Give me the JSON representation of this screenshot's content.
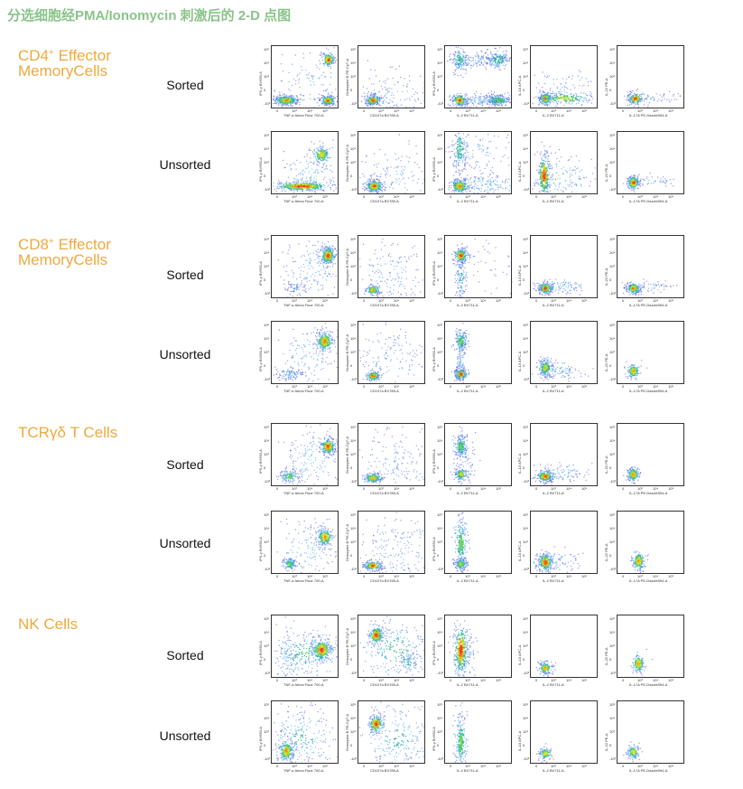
{
  "title": "分选细胞经PMA/Ionomycin 刺激后的 2-D 点图",
  "colors": {
    "title": "#8ac48a",
    "group_label": "#f0a93c",
    "density_low": "#3b44d6",
    "density_high": "#ff2a00"
  },
  "groups": [
    {
      "name_main": "CD4",
      "name_sup": "+",
      "name_tail": " Effector",
      "name_line2": "MemoryCells",
      "rows": [
        {
          "label": "Sorted"
        },
        {
          "label": "Unsorted"
        }
      ]
    },
    {
      "name_main": "CD8",
      "name_sup": "+",
      "name_tail": " Effector",
      "name_line2": "MemoryCells",
      "rows": [
        {
          "label": "Sorted"
        },
        {
          "label": "Unsorted"
        }
      ]
    },
    {
      "name_main": "TCRγδ T Cells",
      "name_sup": "",
      "name_tail": "",
      "name_line2": "",
      "rows": [
        {
          "label": "Sorted"
        },
        {
          "label": "Unsorted"
        }
      ]
    },
    {
      "name_main": "NK Cells",
      "name_sup": "",
      "name_tail": "",
      "name_line2": "",
      "rows": [
        {
          "label": "Sorted"
        },
        {
          "label": "Unsorted"
        }
      ]
    }
  ],
  "columns": [
    {
      "x_label": "TNF-α Alexa Fluor 700-A",
      "y_label": "IFN-γ BV650-A"
    },
    {
      "x_label": "CD107a BV785-A",
      "y_label": "Granzyme B PE-Cy7-A"
    },
    {
      "x_label": "IL-2 BV711-A",
      "y_label": "IFN-γ BV650-A"
    },
    {
      "x_label": "IL-2 BV711-A",
      "y_label": "IL-10 APC-A"
    },
    {
      "x_label": "IL-17A PE-Dazzle594-A",
      "y_label": "IL-22 PE-A"
    }
  ],
  "ticks": [
    "0",
    "10³",
    "10⁴",
    "10⁵"
  ],
  "ticks_y": [
    "10⁵",
    "10⁴",
    "10³",
    "0",
    "-10³"
  ]
}
